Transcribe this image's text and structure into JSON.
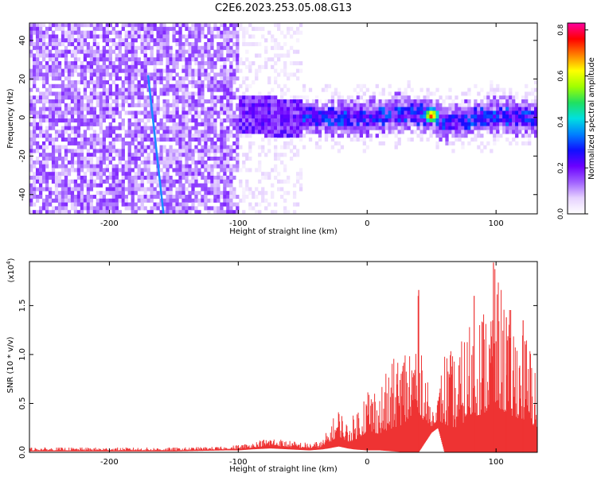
{
  "title": "C2E6.2023.253.05.08.G13",
  "chart_data": [
    {
      "type": "heatmap",
      "title": "C2E6.2023.253.05.08.G13",
      "xlabel": "Height of straight line (km)",
      "ylabel": "Frequency (Hz)",
      "xlim": [
        -262,
        132
      ],
      "ylim": [
        -50,
        49
      ],
      "xticks": [
        -200,
        -100,
        0,
        100
      ],
      "xtick_labels": [
        "-200",
        "-100",
        "0",
        "100"
      ],
      "yticks": [
        -40,
        -20,
        0,
        20,
        40
      ],
      "ytick_labels": [
        "-40",
        "-20",
        "0",
        "20",
        "40"
      ],
      "colorbar": {
        "label": "Normalized spectral amplitude",
        "range": [
          0,
          0.83
        ],
        "ticks": [
          0,
          0.2,
          0.4,
          0.6,
          0.8
        ],
        "tick_labels": [
          "0.0",
          "0.2",
          "0.4",
          "0.6",
          "0.8"
        ],
        "colormap": [
          "#ffffff",
          "#e6d2ff",
          "#a060ff",
          "#6b00ff",
          "#1010ff",
          "#0080ff",
          "#00e0e0",
          "#20e060",
          "#a0ff00",
          "#ffff00",
          "#ff8000",
          "#ff0000",
          "#ff00a0"
        ]
      },
      "regions": [
        {
          "x_range": [
            -262,
            -100
          ],
          "freq_range": [
            -50,
            49
          ],
          "description": "broadband noise",
          "amplitude": 0.12
        },
        {
          "x_range": [
            -100,
            132
          ],
          "freq_center": 0,
          "freq_halfwidth": 8,
          "amplitude": 0.25
        },
        {
          "x": 50,
          "freq": 1,
          "amplitude": 0.8
        }
      ],
      "band_center_line": {
        "x": [
          -100,
          -50,
          0,
          30,
          50,
          60,
          100,
          132
        ],
        "freq": [
          1,
          0,
          0,
          2,
          1,
          -3,
          1,
          0
        ]
      },
      "streak": {
        "x": [
          -170,
          -158
        ],
        "freq": [
          22,
          -50
        ]
      },
      "grid": false
    },
    {
      "type": "line",
      "xlabel": "Height of straight line (km)",
      "ylabel": "SNR (10 * v/v)",
      "multiplier_label": "(x10",
      "multiplier_exp": "4",
      "multiplier_close": ")",
      "xlim": [
        -262,
        132
      ],
      "ylim": [
        0,
        1.95
      ],
      "xticks": [
        -200,
        -100,
        0,
        100
      ],
      "xtick_labels": [
        "-200",
        "-100",
        "0",
        "100"
      ],
      "yticks": [
        0,
        0.5,
        1.0,
        1.5
      ],
      "ytick_labels": [
        "0.0",
        "0.5",
        "1.0",
        "1.5"
      ],
      "line_color": "#ee3333",
      "grid": false,
      "envelope": {
        "x": [
          -262,
          -150,
          -110,
          -100,
          -90,
          -75,
          -60,
          -45,
          -35,
          -30,
          -22,
          -15,
          -10,
          0,
          10,
          20,
          30,
          35,
          40,
          45,
          50,
          55,
          60,
          70,
          80,
          90,
          95,
          100,
          110,
          120,
          125,
          132
        ],
        "low": [
          0.01,
          0.01,
          0.02,
          0.02,
          0.03,
          0.04,
          0.03,
          0.02,
          0.03,
          0.04,
          0.06,
          0.04,
          0.03,
          0.02,
          0.02,
          0.01,
          0.0,
          0.0,
          0.0,
          0.1,
          0.2,
          0.25,
          0.0,
          0.0,
          0.0,
          0.0,
          0.0,
          0.0,
          0.0,
          0.0,
          0.0,
          0.0
        ],
        "high": [
          0.05,
          0.05,
          0.06,
          0.08,
          0.1,
          0.16,
          0.12,
          0.1,
          0.12,
          0.25,
          0.48,
          0.3,
          0.4,
          0.75,
          0.7,
          0.95,
          1.2,
          1.3,
          1.65,
          0.9,
          0.45,
          0.6,
          1.1,
          1.0,
          1.45,
          1.55,
          1.75,
          1.9,
          1.5,
          1.35,
          1.2,
          1.0
        ]
      },
      "peaks": [
        {
          "x": 40,
          "y": 1.66
        },
        {
          "x": 83,
          "y": 1.6
        },
        {
          "x": 98,
          "y": 1.94
        },
        {
          "x": 108,
          "y": 1.38
        },
        {
          "x": 121,
          "y": 1.35
        }
      ]
    }
  ]
}
